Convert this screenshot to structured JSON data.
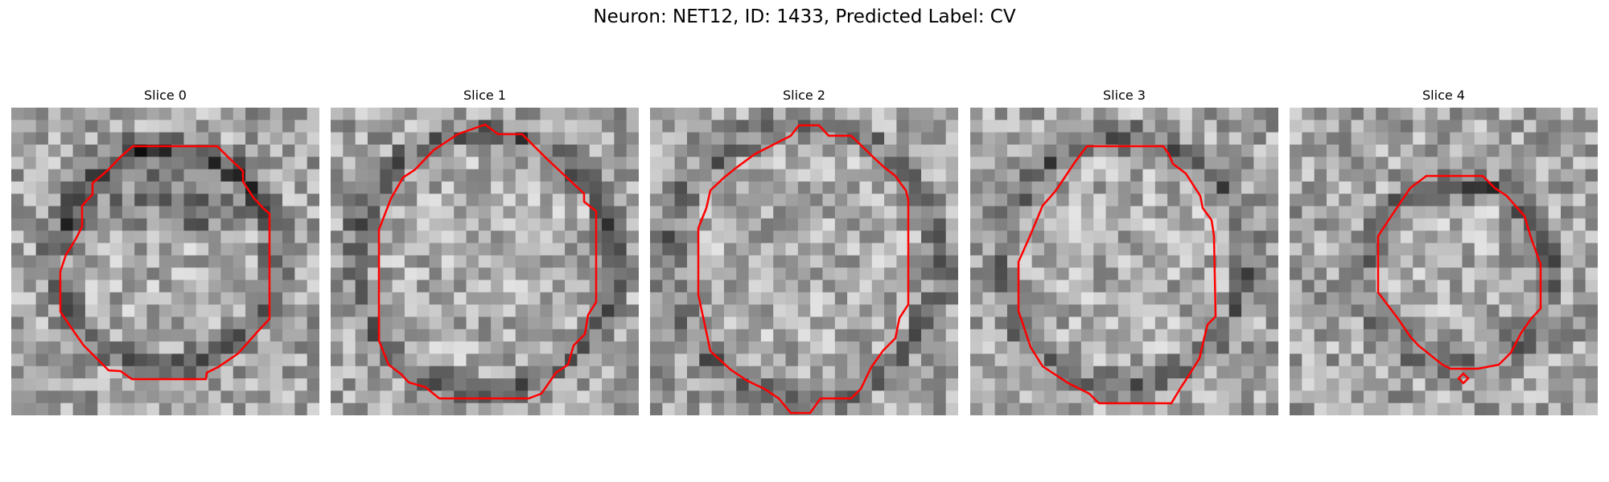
{
  "figure": {
    "title": "Neuron: NET12, ID: 1433, Predicted Label: CV"
  },
  "panels": [
    {
      "title": "Slice 0"
    },
    {
      "title": "Slice 1"
    },
    {
      "title": "Slice 2"
    },
    {
      "title": "Slice 3"
    },
    {
      "title": "Slice 4"
    }
  ],
  "colors": {
    "contour": "#ff0000",
    "background": "#ffffff",
    "image_colormap": "gray"
  }
}
